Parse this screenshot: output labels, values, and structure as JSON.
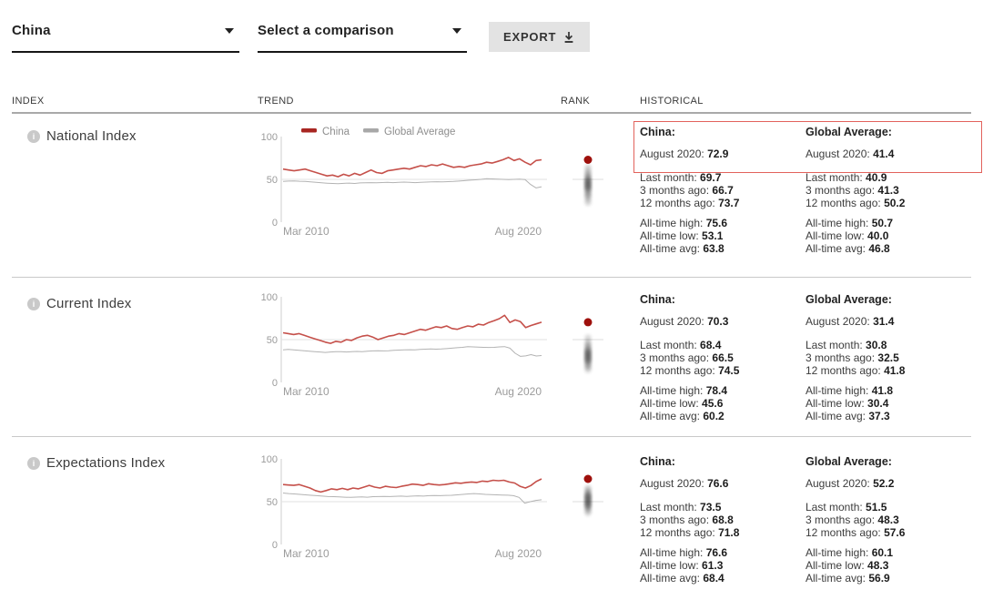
{
  "controls": {
    "country_select_value": "China",
    "comparison_select_value": "Select a comparison",
    "export_label": "EXPORT"
  },
  "table_headers": {
    "index": "INDEX",
    "trend": "TREND",
    "rank": "RANK",
    "historical": "HISTORICAL"
  },
  "labels": {
    "china_heading": "China:",
    "global_heading": "Global Average:",
    "current": "August 2020:",
    "last_month": "Last month:",
    "three_months": "3 months ago:",
    "twelve_months": "12 months ago:",
    "high": "All-time high:",
    "low": "All-time low:",
    "avg": "All-time avg:"
  },
  "colors": {
    "china_line": "#c5504a",
    "global_line": "#b3b3b3",
    "legend_swatch_china": "#a82622",
    "legend_swatch_global": "#a8a8a8",
    "rank_dot": "#9e100c",
    "rank_cluster": "#2e2e2e",
    "gridline": "#e2e2e2",
    "axis": "#cfcfcf",
    "axis_text": "#9b9b9b",
    "highlight_border": "#e2625c"
  },
  "rows": [
    {
      "label": "National Index",
      "china": {
        "current": "72.9",
        "last_month": "69.7",
        "three_months": "66.7",
        "twelve_months": "73.7",
        "high": "75.6",
        "low": "53.1",
        "avg": "63.8"
      },
      "global": {
        "current": "41.4",
        "last_month": "40.9",
        "three_months": "41.3",
        "twelve_months": "50.2",
        "high": "50.7",
        "low": "40.0",
        "avg": "46.8"
      }
    },
    {
      "label": "Current Index",
      "china": {
        "current": "70.3",
        "last_month": "68.4",
        "three_months": "66.5",
        "twelve_months": "74.5",
        "high": "78.4",
        "low": "45.6",
        "avg": "60.2"
      },
      "global": {
        "current": "31.4",
        "last_month": "30.8",
        "three_months": "32.5",
        "twelve_months": "41.8",
        "high": "41.8",
        "low": "30.4",
        "avg": "37.3"
      }
    },
    {
      "label": "Expectations Index",
      "china": {
        "current": "76.6",
        "last_month": "73.5",
        "three_months": "68.8",
        "twelve_months": "71.8",
        "high": "76.6",
        "low": "61.3",
        "avg": "68.4"
      },
      "global": {
        "current": "52.2",
        "last_month": "51.5",
        "three_months": "48.3",
        "twelve_months": "57.6",
        "high": "60.1",
        "low": "48.3",
        "avg": "56.9"
      }
    }
  ],
  "chart_data": [
    {
      "type": "line",
      "title": "National Index trend",
      "x_ticks": [
        "Mar 2010",
        "Aug 2020"
      ],
      "y_ticks": [
        0,
        50,
        100
      ],
      "ylim": [
        0,
        100
      ],
      "grid_value": 50,
      "legend": [
        "China",
        "Global Average"
      ],
      "series": [
        {
          "name": "China",
          "values": [
            62,
            61,
            60,
            61,
            62,
            60,
            58,
            56,
            54,
            55,
            53.1,
            56,
            54,
            57,
            55,
            58,
            61,
            58,
            57,
            60,
            61,
            62,
            63,
            62,
            64,
            66,
            65,
            67,
            66,
            68,
            66,
            64,
            65,
            64,
            66,
            67,
            68,
            70,
            69,
            71,
            73,
            75.6,
            72,
            74,
            70,
            67,
            72,
            72.9
          ]
        },
        {
          "name": "Global Average",
          "values": [
            47.5,
            48,
            48.2,
            47.8,
            47.5,
            47,
            46.5,
            46,
            45.5,
            45.2,
            45,
            45.3,
            45.6,
            45.2,
            45.8,
            46,
            46.2,
            46,
            46.3,
            46.5,
            46.2,
            46.5,
            46.8,
            46.5,
            46.2,
            46.5,
            46.8,
            47,
            47.2,
            47,
            47.3,
            47.5,
            48,
            48.5,
            49,
            49.5,
            50,
            50.7,
            50.5,
            50.2,
            50,
            49.8,
            50,
            50.2,
            49.8,
            44,
            40,
            41.4
          ]
        }
      ],
      "rank": {
        "china": 72.9,
        "cluster": [
          64,
          60,
          57,
          55,
          53,
          51,
          50,
          49,
          48,
          47,
          46,
          45,
          44,
          43,
          42,
          41,
          40,
          39,
          38,
          36,
          34,
          32,
          30,
          27,
          23
        ]
      }
    },
    {
      "type": "line",
      "title": "Current Index trend",
      "x_ticks": [
        "Mar 2010",
        "Aug 2020"
      ],
      "y_ticks": [
        0,
        50,
        100
      ],
      "ylim": [
        0,
        100
      ],
      "grid_value": 50,
      "legend": null,
      "series": [
        {
          "name": "China",
          "values": [
            58,
            57,
            56,
            57,
            55,
            53,
            51,
            49,
            47,
            45.6,
            48,
            47,
            50,
            49,
            52,
            54,
            55,
            53,
            50,
            52,
            54,
            55,
            57,
            56,
            58,
            60,
            62,
            61,
            63,
            65,
            64,
            66,
            63,
            62,
            64,
            66,
            65,
            68,
            67,
            70,
            72,
            74.5,
            78.4,
            70,
            73,
            71,
            64,
            66.5,
            68.4,
            70.3
          ]
        },
        {
          "name": "Global Average",
          "values": [
            38,
            38.5,
            38,
            37.5,
            37,
            36.5,
            36,
            35.5,
            35,
            35.5,
            36,
            35.8,
            35.5,
            36,
            36.2,
            36,
            36.5,
            36.8,
            37,
            36.8,
            37,
            37.5,
            37.8,
            38,
            38.2,
            38,
            38.5,
            38.8,
            39,
            38.8,
            39,
            39.5,
            40,
            40.5,
            41,
            41.8,
            41.5,
            41.2,
            41,
            40.8,
            41,
            41.5,
            41.8,
            40,
            34,
            30.4,
            31,
            32.5,
            30.8,
            31.4
          ]
        }
      ],
      "rank": {
        "china": 70.3,
        "cluster": [
          52,
          47,
          44,
          42,
          40,
          38,
          37,
          36,
          35,
          34,
          33,
          32,
          31,
          30,
          29,
          28,
          27,
          26,
          25,
          24,
          22,
          20,
          18,
          15
        ]
      }
    },
    {
      "type": "line",
      "title": "Expectations Index trend",
      "x_ticks": [
        "Mar 2010",
        "Aug 2020"
      ],
      "y_ticks": [
        0,
        50,
        100
      ],
      "ylim": [
        0,
        100
      ],
      "grid_value": 50,
      "legend": null,
      "series": [
        {
          "name": "China",
          "values": [
            70,
            69.5,
            69,
            70,
            68,
            66,
            63,
            61.3,
            63,
            65,
            64,
            65.5,
            64,
            66,
            65,
            67,
            69,
            67,
            66,
            68,
            67,
            66.5,
            68,
            69,
            70.5,
            70,
            69,
            71,
            70,
            69.5,
            70,
            71,
            72,
            71.5,
            72.5,
            73,
            72.5,
            74,
            73.5,
            75,
            74.5,
            75,
            73,
            71.8,
            68,
            66,
            68.8,
            73.5,
            76.6
          ]
        },
        {
          "name": "Global Average",
          "values": [
            60.1,
            59.5,
            59,
            58.5,
            58,
            57.5,
            57,
            56.5,
            56,
            55.8,
            55.5,
            55.2,
            55,
            55.3,
            55.5,
            55.2,
            55.8,
            56,
            56.2,
            56,
            56.3,
            56.5,
            56.2,
            56.5,
            56.8,
            56.5,
            57,
            57.2,
            57,
            57.3,
            57.5,
            58,
            58.5,
            59,
            59.5,
            59,
            58.5,
            58.2,
            58,
            57.8,
            57.6,
            57,
            55,
            48.3,
            50,
            51.5,
            52.2
          ]
        }
      ],
      "rank": {
        "china": 76.6,
        "cluster": [
          66,
          63,
          61,
          59,
          58,
          57,
          56,
          55,
          54,
          53,
          52,
          51,
          50,
          49,
          48,
          47,
          46,
          45,
          44,
          42,
          40,
          37
        ]
      }
    }
  ]
}
